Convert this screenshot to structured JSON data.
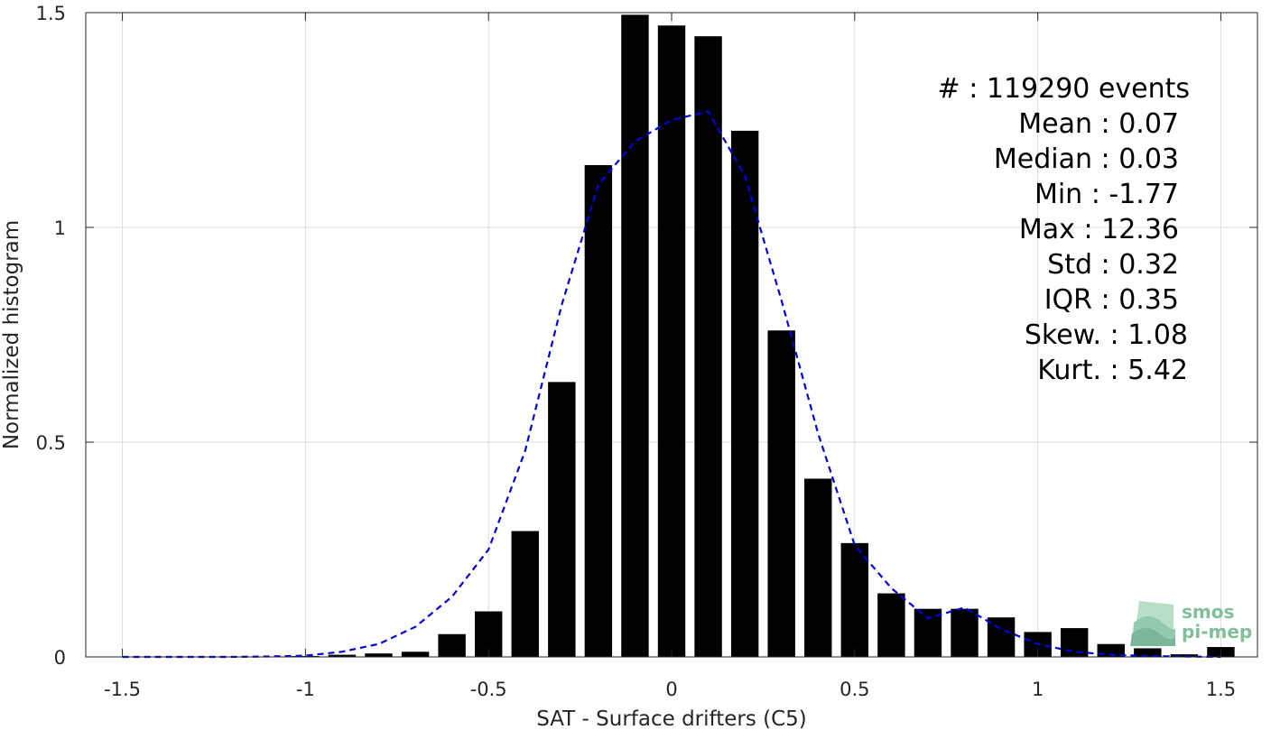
{
  "chart_data": {
    "type": "bar",
    "xlabel": "SAT - Surface drifters (C5)",
    "ylabel": "Normalized histogram",
    "xlim": [
      -1.6,
      1.6
    ],
    "ylim": [
      0,
      1.5
    ],
    "xticks": [
      -1.5,
      -1,
      -0.5,
      0,
      0.5,
      1,
      1.5
    ],
    "xtick_labels": [
      "-1.5",
      "-1",
      "-0.5",
      "0",
      "0.5",
      "1",
      "1.5"
    ],
    "yticks": [
      0,
      0.5,
      1,
      1.5
    ],
    "ytick_labels": [
      "0",
      "0.5",
      "1",
      "1.5"
    ],
    "grid": true,
    "bar_width": 0.075,
    "bar_color": "#000000",
    "bars": {
      "x": [
        -1.3,
        -1.2,
        -1.1,
        -1.0,
        -0.9,
        -0.8,
        -0.7,
        -0.6,
        -0.5,
        -0.4,
        -0.3,
        -0.2,
        -0.1,
        0.0,
        0.1,
        0.2,
        0.3,
        0.4,
        0.5,
        0.6,
        0.7,
        0.8,
        0.9,
        1.0,
        1.1,
        1.2,
        1.3,
        1.4,
        1.5
      ],
      "values": [
        0.001,
        0.001,
        0.001,
        0.002,
        0.005,
        0.008,
        0.012,
        0.053,
        0.106,
        0.293,
        0.64,
        1.145,
        1.495,
        1.47,
        1.445,
        1.225,
        0.76,
        0.415,
        0.265,
        0.148,
        0.112,
        0.112,
        0.092,
        0.058,
        0.067,
        0.03,
        0.02,
        0.006,
        0.023
      ]
    },
    "fit_curve": {
      "style": "dashed",
      "color": "#0000e0",
      "x": [
        -1.5,
        -1.4,
        -1.3,
        -1.2,
        -1.1,
        -1.0,
        -0.9,
        -0.8,
        -0.7,
        -0.6,
        -0.5,
        -0.4,
        -0.3,
        -0.2,
        -0.1,
        0.0,
        0.05,
        0.1,
        0.2,
        0.3,
        0.4,
        0.5,
        0.6,
        0.7,
        0.8,
        0.9,
        1.0,
        1.1,
        1.2,
        1.3,
        1.4,
        1.5
      ],
      "values": [
        0.0,
        0.0,
        0.0,
        0.0,
        0.001,
        0.003,
        0.012,
        0.03,
        0.07,
        0.14,
        0.25,
        0.48,
        0.82,
        1.1,
        1.2,
        1.25,
        1.26,
        1.27,
        1.12,
        0.83,
        0.52,
        0.26,
        0.16,
        0.09,
        0.115,
        0.065,
        0.03,
        0.012,
        0.005,
        0.002,
        0.001,
        0.0
      ]
    }
  },
  "stats": [
    {
      "label": "#  : 119290 events"
    },
    {
      "label": "Mean : 0.07"
    },
    {
      "label": "Median : 0.03"
    },
    {
      "label": "Min : -1.77"
    },
    {
      "label": "Max : 12.36"
    },
    {
      "label": "Std : 0.32"
    },
    {
      "label": "IQR : 0.35"
    },
    {
      "label": "Skew. : 1.08"
    },
    {
      "label": "Kurt. : 5.42"
    }
  ],
  "logo": {
    "line1": "smos",
    "line2": "pi-mep",
    "color": "#7fbf9a"
  }
}
